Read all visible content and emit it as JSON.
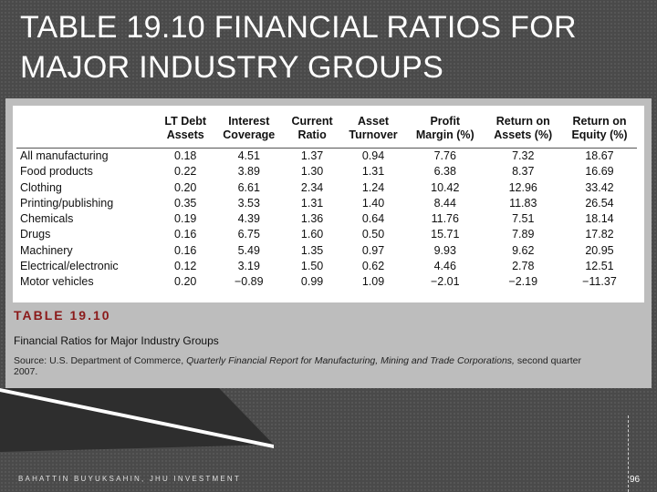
{
  "slide": {
    "title": "TABLE 19.10 FINANCIAL RATIOS FOR MAJOR INDUSTRY GROUPS",
    "footer": "BAHATTIN BUYUKSAHIN, JHU INVESTMENT",
    "page_number": "96"
  },
  "table": {
    "headers": [
      {
        "line1": "",
        "line2": ""
      },
      {
        "line1": "LT Debt",
        "line2": "Assets"
      },
      {
        "line1": "Interest",
        "line2": "Coverage"
      },
      {
        "line1": "Current",
        "line2": "Ratio"
      },
      {
        "line1": "Asset",
        "line2": "Turnover"
      },
      {
        "line1": "Profit",
        "line2": "Margin (%)"
      },
      {
        "line1": "Return on",
        "line2": "Assets (%)"
      },
      {
        "line1": "Return on",
        "line2": "Equity (%)"
      }
    ],
    "rows": [
      {
        "label": "All manufacturing",
        "values": [
          "0.18",
          "4.51",
          "1.37",
          "0.94",
          "7.76",
          "7.32",
          "18.67"
        ]
      },
      {
        "label": "Food products",
        "values": [
          "0.22",
          "3.89",
          "1.30",
          "1.31",
          "6.38",
          "8.37",
          "16.69"
        ]
      },
      {
        "label": "Clothing",
        "values": [
          "0.20",
          "6.61",
          "2.34",
          "1.24",
          "10.42",
          "12.96",
          "33.42"
        ]
      },
      {
        "label": "Printing/publishing",
        "values": [
          "0.35",
          "3.53",
          "1.31",
          "1.40",
          "8.44",
          "11.83",
          "26.54"
        ]
      },
      {
        "label": "Chemicals",
        "values": [
          "0.19",
          "4.39",
          "1.36",
          "0.64",
          "11.76",
          "7.51",
          "18.14"
        ]
      },
      {
        "label": "Drugs",
        "values": [
          "0.16",
          "6.75",
          "1.60",
          "0.50",
          "15.71",
          "7.89",
          "17.82"
        ]
      },
      {
        "label": "Machinery",
        "values": [
          "0.16",
          "5.49",
          "1.35",
          "0.97",
          "9.93",
          "9.62",
          "20.95"
        ]
      },
      {
        "label": "Electrical/electronic",
        "values": [
          "0.12",
          "3.19",
          "1.50",
          "0.62",
          "4.46",
          "2.78",
          "12.51"
        ]
      },
      {
        "label": "Motor vehicles",
        "values": [
          "0.20",
          "−0.89",
          "0.99",
          "1.09",
          "−2.01",
          "−2.19",
          "−11.37"
        ]
      }
    ],
    "caption_label": "TABLE 19.10",
    "caption_title": "Financial Ratios for Major Industry Groups",
    "source_prefix": "Source: U.S. Department of Commerce, ",
    "source_italic": "Quarterly Financial Report for Manufacturing, Mining and Trade Corporations,",
    "source_suffix": " second quarter 2007."
  },
  "colors": {
    "background": "#4a4a4a",
    "caption_red": "#8b1a1a",
    "panel": "#bdbdbd"
  }
}
